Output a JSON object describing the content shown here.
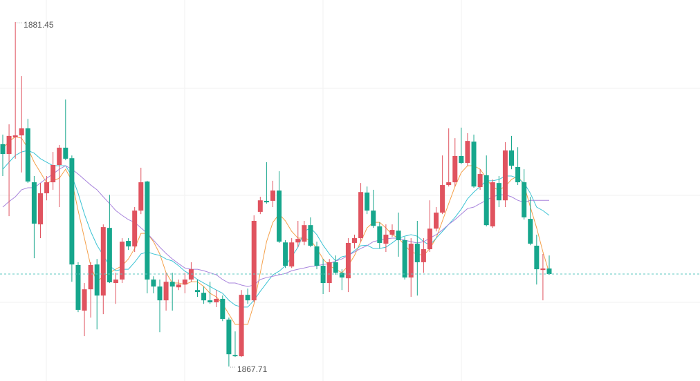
{
  "chart_data": {
    "type": "candlestick",
    "up_color": "#e0535f",
    "down_color": "#16a68c",
    "price_line": true,
    "price_line_color": "#5cc9c0",
    "open": [
      1876.58,
      1876.19,
      1876.85,
      1876.93,
      1877.21,
      1875.06,
      1873.38,
      1874.62,
      1875.06,
      1875.75,
      1876.44,
      1876.02,
      1871.76,
      1869.94,
      1870.79,
      1871.78,
      1870.54,
      1873.24,
      1871.04,
      1871.18,
      1872.72,
      1872.5,
      1873.93,
      1875.09,
      1871.18,
      1870.9,
      1870.35,
      1871.09,
      1870.87,
      1870.98,
      1871.18,
      1870.76,
      1870.65,
      1870.35,
      1870.27,
      1870.41,
      1869.58,
      1868.17,
      1868.12,
      1870.57,
      1870.35,
      1873.88,
      1874.32,
      1874.32,
      1874.73,
      1872.66,
      1871.7,
      1872.66,
      1872.69,
      1873.35,
      1872.5,
      1871.73,
      1871.04,
      1871.87,
      1871.45,
      1871.23,
      1872.64,
      1872.83,
      1874.65,
      1873.93,
      1873.3,
      1872.61,
      1872.97,
      1873.13,
      1872.75,
      1871.26,
      1872.61,
      1871.87,
      1872.39,
      1873.21,
      1873.85,
      1874.95,
      1875.06,
      1876.11,
      1875.83,
      1876.68,
      1874.87,
      1875.34,
      1873.3,
      1875.03,
      1874.34,
      1876.33,
      1875.67,
      1875.06,
      1873.6,
      1872.53,
      1871.56,
      1871.62
    ],
    "high": [
      1876.96,
      1877.37,
      1881.45,
      1879.3,
      1877.59,
      1875.31,
      1875.03,
      1875.31,
      1876.27,
      1876.55,
      1878.36,
      1876.13,
      1871.87,
      1871.04,
      1871.87,
      1872.0,
      1873.38,
      1874.56,
      1871.45,
      1872.83,
      1872.83,
      1874.07,
      1875.64,
      1875.12,
      1871.31,
      1871.18,
      1871.45,
      1871.45,
      1871.18,
      1871.45,
      1871.87,
      1871.18,
      1870.9,
      1871.09,
      1870.76,
      1870.54,
      1869.66,
      1869.11,
      1870.76,
      1870.82,
      1873.74,
      1874.48,
      1875.86,
      1875.12,
      1875.5,
      1872.75,
      1872.83,
      1873.52,
      1873.52,
      1873.66,
      1872.69,
      1872.0,
      1872.0,
      1872.14,
      1871.59,
      1872.83,
      1872.97,
      1875.03,
      1874.89,
      1874.76,
      1873.46,
      1873.38,
      1873.38,
      1873.85,
      1872.88,
      1872.83,
      1873.52,
      1872.83,
      1874.34,
      1874.07,
      1876.13,
      1877.21,
      1876.82,
      1877.24,
      1877.02,
      1876.96,
      1875.58,
      1876.13,
      1875.17,
      1875.31,
      1876.66,
      1876.91,
      1876.46,
      1875.58,
      1874.48,
      1872.97,
      1872.2,
      1872.14
    ],
    "low": [
      1875.31,
      1873.71,
      1876.0,
      1875.45,
      1875.03,
      1872.03,
      1872.83,
      1874.34,
      1874.76,
      1874.07,
      1875.94,
      1871.09,
      1869.88,
      1868.92,
      1869.66,
      1869.19,
      1869.8,
      1871.04,
      1870.21,
      1871.04,
      1872.36,
      1872.28,
      1873.79,
      1870.63,
      1870.63,
      1869.08,
      1869.94,
      1869.94,
      1870.76,
      1870.63,
      1871.09,
      1870.49,
      1870.21,
      1870.21,
      1870.08,
      1869.52,
      1867.71,
      1868.09,
      1868.09,
      1870.21,
      1870.27,
      1873.79,
      1874.21,
      1874.07,
      1872.64,
      1871.64,
      1871.64,
      1872.47,
      1872.55,
      1872.47,
      1871.59,
      1870.6,
      1870.68,
      1871.37,
      1870.76,
      1870.68,
      1872.42,
      1872.69,
      1873.79,
      1873.24,
      1872.42,
      1872.28,
      1872.88,
      1872.09,
      1871.18,
      1870.49,
      1870.54,
      1871.45,
      1872.28,
      1873.1,
      1873.79,
      1874.89,
      1874.89,
      1875.78,
      1875.72,
      1874.84,
      1874.76,
      1873.3,
      1873.24,
      1874.07,
      1874.07,
      1875.58,
      1874.95,
      1873.57,
      1872.55,
      1870.98,
      1870.35,
      1871.37
    ],
    "close": [
      1876.19,
      1876.91,
      1876.93,
      1877.21,
      1875.09,
      1873.41,
      1874.62,
      1875.06,
      1875.75,
      1876.44,
      1876.0,
      1871.78,
      1869.97,
      1870.79,
      1871.76,
      1870.54,
      1873.27,
      1871.07,
      1871.18,
      1872.69,
      1872.5,
      1873.93,
      1875.06,
      1871.18,
      1870.9,
      1870.35,
      1871.09,
      1870.9,
      1870.98,
      1871.18,
      1871.59,
      1870.68,
      1870.35,
      1870.27,
      1870.41,
      1869.61,
      1868.2,
      1868.12,
      1870.57,
      1870.35,
      1873.52,
      1874.34,
      1874.26,
      1874.73,
      1872.69,
      1871.73,
      1872.66,
      1872.8,
      1873.35,
      1872.53,
      1871.73,
      1871.04,
      1871.87,
      1871.45,
      1871.26,
      1872.64,
      1872.83,
      1874.67,
      1873.93,
      1873.32,
      1872.64,
      1872.97,
      1873.16,
      1872.75,
      1871.26,
      1872.61,
      1871.87,
      1872.39,
      1873.21,
      1873.85,
      1874.95,
      1875.06,
      1876.11,
      1875.83,
      1876.71,
      1874.89,
      1875.39,
      1873.35,
      1875.06,
      1874.34,
      1876.33,
      1875.72,
      1875.06,
      1873.66,
      1872.61,
      1871.59,
      1871.62,
      1871.4
    ],
    "series": [
      {
        "color": "#f5a04a",
        "values": [
          1876.41,
          1876.68,
          1876.88,
          1876.82,
          1876.41,
          1875.86,
          1875.45,
          1875.03,
          1875.12,
          1875.22,
          1875.58,
          1875.12,
          1873.93,
          1872.83,
          1871.73,
          1871.09,
          1871.31,
          1871.45,
          1871.59,
          1871.73,
          1872.0,
          1872.42,
          1873.02,
          1873.02,
          1872.69,
          1872.2,
          1871.45,
          1871.04,
          1871.04,
          1870.98,
          1871.09,
          1871.09,
          1870.9,
          1870.63,
          1870.49,
          1870.21,
          1869.8,
          1869.39,
          1869.39,
          1869.39,
          1870.21,
          1871.45,
          1872.69,
          1873.46,
          1873.79,
          1873.52,
          1873.1,
          1872.83,
          1872.83,
          1872.75,
          1872.42,
          1872.0,
          1871.73,
          1871.59,
          1871.45,
          1871.73,
          1872.14,
          1872.69,
          1873.24,
          1873.46,
          1873.46,
          1873.24,
          1872.97,
          1872.83,
          1872.55,
          1872.28,
          1872.2,
          1872.14,
          1872.42,
          1872.83,
          1873.52,
          1874.21,
          1874.89,
          1875.45,
          1875.72,
          1875.72,
          1875.58,
          1875.22,
          1874.84,
          1874.76,
          1874.89,
          1875.17,
          1875.31,
          1874.95,
          1874.07,
          1873.24,
          1872.28,
          1871.45
        ]
      },
      {
        "color": "#3cc3d4",
        "values": [
          1875.58,
          1875.86,
          1876.13,
          1876.27,
          1876.33,
          1876.22,
          1876.0,
          1875.86,
          1875.72,
          1875.72,
          1875.72,
          1875.31,
          1874.62,
          1873.79,
          1873.1,
          1872.55,
          1872.14,
          1871.73,
          1871.53,
          1871.59,
          1871.59,
          1871.87,
          1872.2,
          1872.28,
          1872.2,
          1872.14,
          1872.0,
          1871.92,
          1871.73,
          1871.51,
          1871.37,
          1871.18,
          1871.04,
          1870.9,
          1870.76,
          1870.63,
          1870.35,
          1870.16,
          1870.08,
          1870.08,
          1870.35,
          1870.71,
          1871.04,
          1871.37,
          1871.51,
          1871.73,
          1872.09,
          1872.47,
          1873.1,
          1873.24,
          1872.97,
          1872.55,
          1872.2,
          1871.92,
          1872.09,
          1872.14,
          1872.33,
          1872.53,
          1872.55,
          1872.42,
          1872.42,
          1872.47,
          1872.64,
          1872.83,
          1872.91,
          1872.97,
          1872.91,
          1872.69,
          1872.55,
          1872.83,
          1873.1,
          1873.38,
          1873.66,
          1873.99,
          1874.4,
          1874.67,
          1874.89,
          1875.12,
          1875.12,
          1875.17,
          1875.31,
          1875.31,
          1875.22,
          1875.03,
          1874.62,
          1874.07,
          1873.93,
          1873.74
        ]
      },
      {
        "color": "#a884dc",
        "values": [
          1874.07,
          1874.29,
          1874.48,
          1874.76,
          1874.84,
          1874.84,
          1875.03,
          1875.22,
          1875.39,
          1875.58,
          1875.72,
          1875.58,
          1875.39,
          1875.17,
          1874.95,
          1874.76,
          1874.48,
          1874.21,
          1873.93,
          1873.74,
          1873.57,
          1873.46,
          1873.24,
          1873.02,
          1872.75,
          1872.47,
          1872.22,
          1872.0,
          1871.81,
          1871.64,
          1871.59,
          1871.59,
          1871.53,
          1871.45,
          1871.37,
          1871.18,
          1871.04,
          1871.04,
          1870.96,
          1870.9,
          1870.96,
          1871.18,
          1871.26,
          1871.31,
          1871.37,
          1871.42,
          1871.53,
          1871.59,
          1871.64,
          1871.7,
          1871.73,
          1871.78,
          1871.81,
          1871.92,
          1872.0,
          1872.14,
          1872.28,
          1872.42,
          1872.53,
          1872.69,
          1872.75,
          1872.8,
          1872.83,
          1872.83,
          1872.75,
          1872.69,
          1872.64,
          1872.69,
          1872.83,
          1872.97,
          1873.16,
          1873.38,
          1873.57,
          1873.79,
          1874.01,
          1874.07,
          1874.21,
          1874.34,
          1874.48,
          1874.56,
          1874.56,
          1874.48,
          1874.34,
          1874.26,
          1874.34,
          1874.34,
          1874.34,
          1874.34
        ]
      }
    ]
  }
}
